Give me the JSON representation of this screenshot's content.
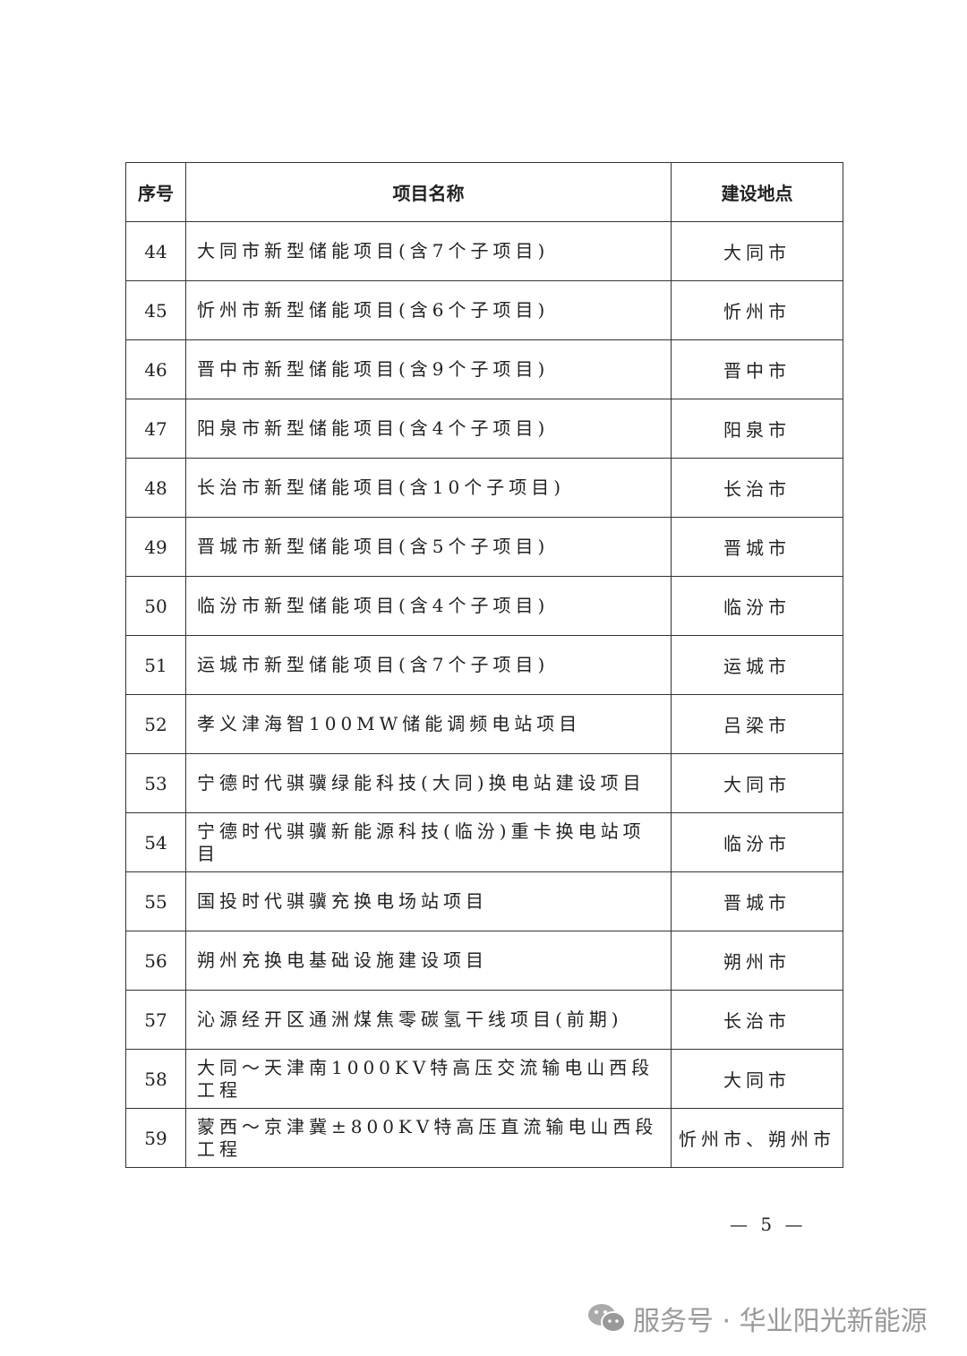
{
  "table": {
    "headers": [
      "序号",
      "项目名称",
      "建设地点"
    ],
    "rows": [
      {
        "no": "44",
        "name": "大同市新型储能项目(含7个子项目)",
        "location": "大同市"
      },
      {
        "no": "45",
        "name": "忻州市新型储能项目(含6个子项目)",
        "location": "忻州市"
      },
      {
        "no": "46",
        "name": "晋中市新型储能项目(含9个子项目)",
        "location": "晋中市"
      },
      {
        "no": "47",
        "name": "阳泉市新型储能项目(含4个子项目)",
        "location": "阳泉市"
      },
      {
        "no": "48",
        "name": "长治市新型储能项目(含10个子项目)",
        "location": "长治市"
      },
      {
        "no": "49",
        "name": "晋城市新型储能项目(含5个子项目)",
        "location": "晋城市"
      },
      {
        "no": "50",
        "name": "临汾市新型储能项目(含4个子项目)",
        "location": "临汾市"
      },
      {
        "no": "51",
        "name": "运城市新型储能项目(含7个子项目)",
        "location": "运城市"
      },
      {
        "no": "52",
        "name": "孝义津海智100MW储能调频电站项目",
        "location": "吕梁市"
      },
      {
        "no": "53",
        "name": "宁德时代骐骥绿能科技(大同)换电站建设项目",
        "location": "大同市"
      },
      {
        "no": "54",
        "name": "宁德时代骐骥新能源科技(临汾)重卡换电站项目",
        "location": "临汾市"
      },
      {
        "no": "55",
        "name": "国投时代骐骥充换电场站项目",
        "location": "晋城市"
      },
      {
        "no": "56",
        "name": "朔州充换电基础设施建设项目",
        "location": "朔州市"
      },
      {
        "no": "57",
        "name": "沁源经开区通洲煤焦零碳氢干线项目(前期)",
        "location": "长治市"
      },
      {
        "no": "58",
        "name": "大同～天津南1000KV特高压交流输电山西段工程",
        "location": "大同市"
      },
      {
        "no": "59",
        "name": "蒙西～京津冀±800KV特高压直流输电山西段工程",
        "location": "忻州市、朔州市"
      }
    ]
  },
  "page_number": "— 5 —",
  "watermark": {
    "icon": "wechat-icon",
    "text": "服务号 · 华业阳光新能源"
  }
}
